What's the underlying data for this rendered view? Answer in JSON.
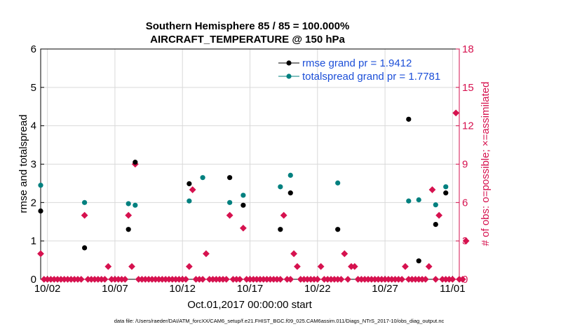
{
  "colors": {
    "rmse": "#000000",
    "totalspread": "#00807f",
    "obs": "#d6124f",
    "legend_text": "#1c4fd8",
    "grid": "#d9d9d9"
  },
  "chart_data": {
    "type": "scatter",
    "title": "Southern Hemisphere 85 / 85 = 100.000%",
    "subtitle": "AIRCRAFT_TEMPERATURE @ 150 hPa",
    "xlabel": "Oct.01,2017 00:00:00 start",
    "ylabel_left": "rmse and totalspread",
    "ylabel_right": "# of obs: o=possible; ×=assimilated",
    "xlim": [
      1.5,
      32.5
    ],
    "ylim_left": [
      0,
      6
    ],
    "ylim_right": [
      0,
      18
    ],
    "x_ticks": [
      {
        "x": 2,
        "label": "10/02"
      },
      {
        "x": 7,
        "label": "10/07"
      },
      {
        "x": 12,
        "label": "10/12"
      },
      {
        "x": 17,
        "label": "10/17"
      },
      {
        "x": 22,
        "label": "10/22"
      },
      {
        "x": 27,
        "label": "10/27"
      },
      {
        "x": 32,
        "label": "11/01"
      }
    ],
    "y_ticks_left": [
      "0",
      "1",
      "2",
      "3",
      "4",
      "5",
      "6"
    ],
    "y_ticks_right": [
      "0",
      "3",
      "6",
      "9",
      "12",
      "15",
      "18"
    ],
    "y_ticks_left_values": [
      0,
      1,
      2,
      3,
      4,
      5,
      6
    ],
    "y_ticks_right_values": [
      0,
      3,
      6,
      9,
      12,
      15,
      18
    ],
    "grid": true,
    "legend": {
      "position": "top-right",
      "entries": [
        "rmse grand pr = 1.9412",
        "totalspread grand pr = 1.7781"
      ]
    },
    "series": [
      {
        "name": "rmse",
        "axis": "left",
        "points": [
          {
            "x": 1.5,
            "y": 1.78
          },
          {
            "x": 4.75,
            "y": 0.82
          },
          {
            "x": 8.0,
            "y": 1.3
          },
          {
            "x": 8.5,
            "y": 3.05
          },
          {
            "x": 12.5,
            "y": 2.49
          },
          {
            "x": 15.5,
            "y": 2.65
          },
          {
            "x": 16.5,
            "y": 1.93
          },
          {
            "x": 19.25,
            "y": 1.3
          },
          {
            "x": 20.0,
            "y": 2.25
          },
          {
            "x": 23.5,
            "y": 1.3
          },
          {
            "x": 28.75,
            "y": 4.17
          },
          {
            "x": 29.5,
            "y": 0.48
          },
          {
            "x": 30.75,
            "y": 1.43
          },
          {
            "x": 31.5,
            "y": 2.25
          }
        ]
      },
      {
        "name": "totalspread",
        "axis": "left",
        "points": [
          {
            "x": 1.5,
            "y": 2.45
          },
          {
            "x": 4.75,
            "y": 2.0
          },
          {
            "x": 8.0,
            "y": 1.97
          },
          {
            "x": 8.5,
            "y": 1.93
          },
          {
            "x": 12.5,
            "y": 2.04
          },
          {
            "x": 13.5,
            "y": 2.65
          },
          {
            "x": 15.5,
            "y": 2.0
          },
          {
            "x": 16.5,
            "y": 2.19
          },
          {
            "x": 19.25,
            "y": 2.41
          },
          {
            "x": 20.0,
            "y": 2.71
          },
          {
            "x": 23.5,
            "y": 2.51
          },
          {
            "x": 28.75,
            "y": 2.04
          },
          {
            "x": 29.5,
            "y": 2.07
          },
          {
            "x": 30.75,
            "y": 1.94
          },
          {
            "x": 31.5,
            "y": 2.41
          }
        ]
      },
      {
        "name": "# of obs (possible / assimilated)",
        "axis": "right",
        "x_start": 1.5,
        "x_step": 0.25,
        "values": [
          2,
          0,
          0,
          0,
          0,
          0,
          0,
          0,
          0,
          0,
          0,
          0,
          0,
          5,
          0,
          0,
          0,
          0,
          0,
          0,
          1,
          0,
          0,
          0,
          0,
          0,
          5,
          1,
          9,
          0,
          0,
          0,
          0,
          0,
          0,
          0,
          0,
          0,
          0,
          0,
          0,
          0,
          0,
          0,
          1,
          7,
          0,
          0,
          0,
          2,
          0,
          0,
          0,
          0,
          0,
          0,
          5,
          0,
          0,
          0,
          4,
          0,
          0,
          0,
          0,
          0,
          0,
          0,
          0,
          0,
          0,
          0,
          5,
          0,
          0,
          2,
          1,
          0,
          0,
          0,
          0,
          0,
          0,
          1,
          0,
          0,
          0,
          0,
          0,
          0,
          2,
          0,
          1,
          1,
          0,
          0,
          0,
          0,
          0,
          0,
          0,
          0,
          0,
          0,
          0,
          0,
          0,
          0,
          1,
          0,
          0,
          0,
          0,
          0,
          0,
          1,
          7,
          0,
          5,
          0,
          0,
          0,
          0,
          13,
          0,
          0,
          3
        ]
      }
    ]
  },
  "footnote": "data file: /Users/raeder/DAI/ATM_forcXX/CAM6_setup/f.e21.FHIST_BGC.f09_025.CAM6assim.011/Diags_NTrS_2017-10/obs_diag_output.nc"
}
